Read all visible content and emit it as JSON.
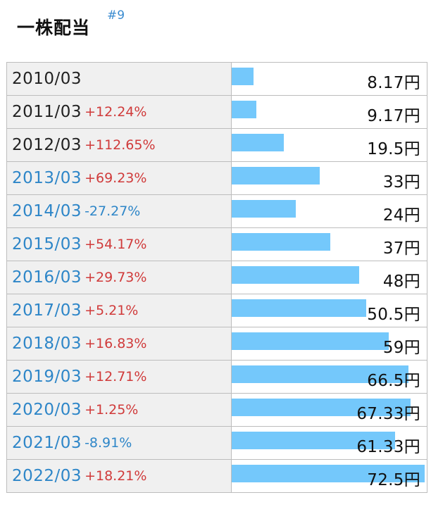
{
  "title": "一株配当",
  "anchor": "#9",
  "unit": "円",
  "colors": {
    "bar": "#74c8fb",
    "positive_change": "#d03a3a",
    "negative_change": "#2e86c8",
    "year_link": "#2e86c8",
    "year_plain": "#222222"
  },
  "chart_data": {
    "type": "bar",
    "title": "一株配当",
    "orientation": "horizontal",
    "unit": "円",
    "xlim": [
      0,
      72.5
    ],
    "rows": [
      {
        "year": "2010/03",
        "change": "",
        "value": 8.17,
        "label": "8.17円",
        "linked": false
      },
      {
        "year": "2011/03",
        "change": "+12.24%",
        "value": 9.17,
        "label": "9.17円",
        "linked": false
      },
      {
        "year": "2012/03",
        "change": "+112.65%",
        "value": 19.5,
        "label": "19.5円",
        "linked": false
      },
      {
        "year": "2013/03",
        "change": "+69.23%",
        "value": 33,
        "label": "33円",
        "linked": true
      },
      {
        "year": "2014/03",
        "change": "-27.27%",
        "value": 24,
        "label": "24円",
        "linked": true
      },
      {
        "year": "2015/03",
        "change": "+54.17%",
        "value": 37,
        "label": "37円",
        "linked": true
      },
      {
        "year": "2016/03",
        "change": "+29.73%",
        "value": 48,
        "label": "48円",
        "linked": true
      },
      {
        "year": "2017/03",
        "change": "+5.21%",
        "value": 50.5,
        "label": "50.5円",
        "linked": true
      },
      {
        "year": "2018/03",
        "change": "+16.83%",
        "value": 59,
        "label": "59円",
        "linked": true
      },
      {
        "year": "2019/03",
        "change": "+12.71%",
        "value": 66.5,
        "label": "66.5円",
        "linked": true
      },
      {
        "year": "2020/03",
        "change": "+1.25%",
        "value": 67.33,
        "label": "67.33円",
        "linked": true
      },
      {
        "year": "2021/03",
        "change": "-8.91%",
        "value": 61.33,
        "label": "61.33円",
        "linked": true
      },
      {
        "year": "2022/03",
        "change": "+18.21%",
        "value": 72.5,
        "label": "72.5円",
        "linked": true
      }
    ]
  }
}
